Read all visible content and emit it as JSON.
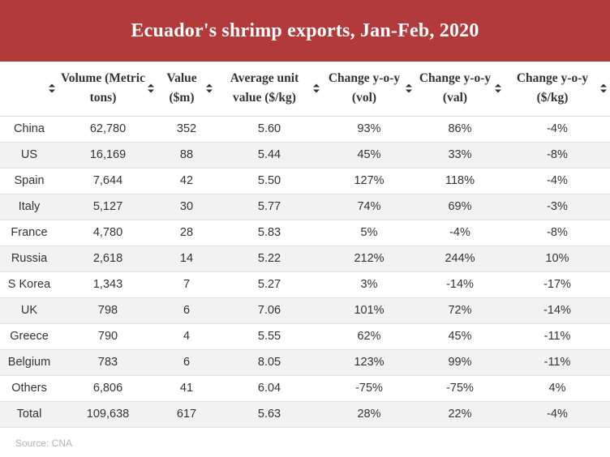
{
  "chart_data": {
    "type": "table",
    "title": "Ecuador's shrimp exports, Jan-Feb, 2020",
    "columns": [
      "",
      "Volume (Metric tons)",
      "Value ($m)",
      "Average unit value ($/kg)",
      "Change y-o-y (vol)",
      "Change y-o-y (val)",
      "Change y-o-y ($/kg)"
    ],
    "rows": [
      [
        "China",
        "62,780",
        "352",
        "5.60",
        "93%",
        "86%",
        "-4%"
      ],
      [
        "US",
        "16,169",
        "88",
        "5.44",
        "45%",
        "33%",
        "-8%"
      ],
      [
        "Spain",
        "7,644",
        "42",
        "5.50",
        "127%",
        "118%",
        "-4%"
      ],
      [
        "Italy",
        "5,127",
        "30",
        "5.77",
        "74%",
        "69%",
        "-3%"
      ],
      [
        "France",
        "4,780",
        "28",
        "5.83",
        "5%",
        "-4%",
        "-8%"
      ],
      [
        "Russia",
        "2,618",
        "14",
        "5.22",
        "212%",
        "244%",
        "10%"
      ],
      [
        "S Korea",
        "1,343",
        "7",
        "5.27",
        "3%",
        "-14%",
        "-17%"
      ],
      [
        "UK",
        "798",
        "6",
        "7.06",
        "101%",
        "72%",
        "-14%"
      ],
      [
        "Greece",
        "790",
        "4",
        "5.55",
        "62%",
        "45%",
        "-11%"
      ],
      [
        "Belgium",
        "783",
        "6",
        "8.05",
        "123%",
        "99%",
        "-11%"
      ],
      [
        "Others",
        "6,806",
        "41",
        "6.04",
        "-75%",
        "-75%",
        "4%"
      ],
      [
        "Total",
        "109,638",
        "617",
        "5.63",
        "28%",
        "22%",
        "-4%"
      ]
    ],
    "source": "Source: CNA"
  },
  "colors": {
    "banner": "#b23a3a",
    "stripe": "#f2f2f2",
    "text": "#333333",
    "source_text": "#b3b3b3"
  },
  "icons": {
    "sort": "sort-arrows-icon"
  }
}
